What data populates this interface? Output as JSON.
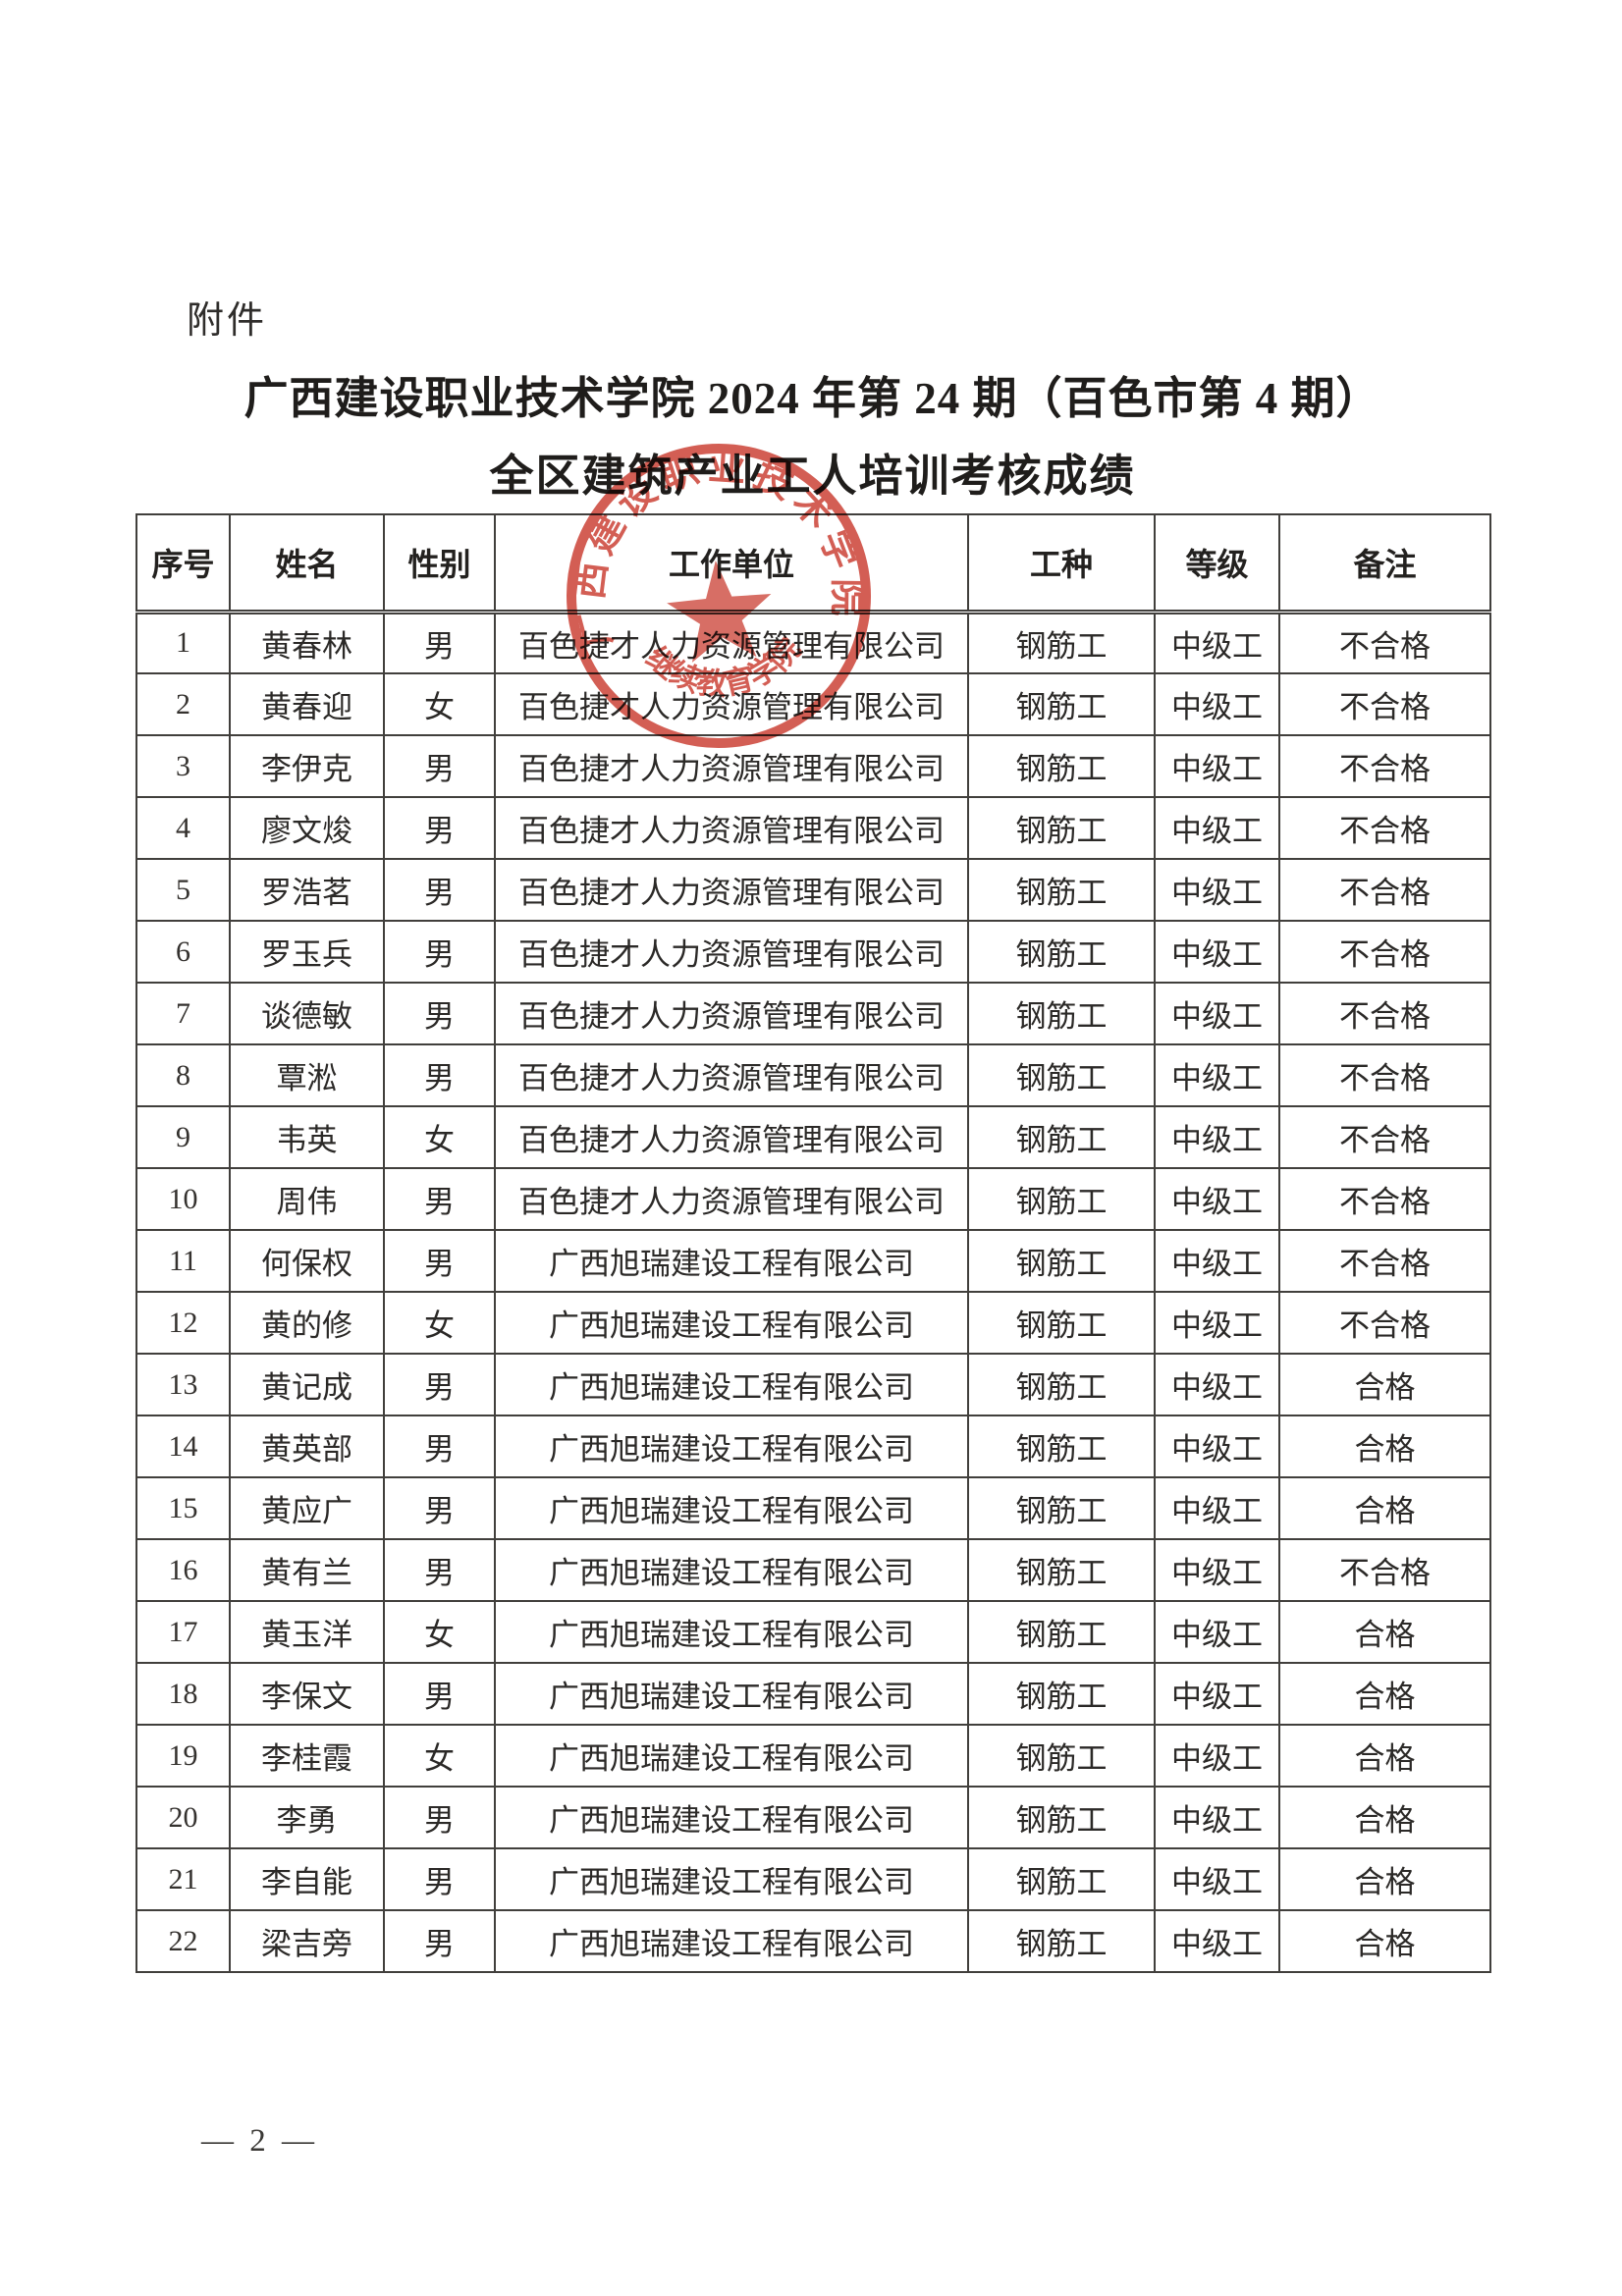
{
  "page": {
    "attachment_label": "附件",
    "title_line1": "广西建设职业技术学院 2024 年第 24 期（百色市第 4 期）",
    "title_line2": "全区建筑产业工人培训考核成绩",
    "page_number": "— 2 —"
  },
  "stamp": {
    "ring_text": "广西建设职业技术学院",
    "bottom_text": "继续教育学院",
    "color": "#c93a2e"
  },
  "table": {
    "headers": [
      "序号",
      "姓名",
      "性别",
      "工作单位",
      "工种",
      "等级",
      "备注"
    ],
    "rows": [
      [
        "1",
        "黄春林",
        "男",
        "百色捷才人力资源管理有限公司",
        "钢筋工",
        "中级工",
        "不合格"
      ],
      [
        "2",
        "黄春迎",
        "女",
        "百色捷才人力资源管理有限公司",
        "钢筋工",
        "中级工",
        "不合格"
      ],
      [
        "3",
        "李伊克",
        "男",
        "百色捷才人力资源管理有限公司",
        "钢筋工",
        "中级工",
        "不合格"
      ],
      [
        "4",
        "廖文焌",
        "男",
        "百色捷才人力资源管理有限公司",
        "钢筋工",
        "中级工",
        "不合格"
      ],
      [
        "5",
        "罗浩茗",
        "男",
        "百色捷才人力资源管理有限公司",
        "钢筋工",
        "中级工",
        "不合格"
      ],
      [
        "6",
        "罗玉兵",
        "男",
        "百色捷才人力资源管理有限公司",
        "钢筋工",
        "中级工",
        "不合格"
      ],
      [
        "7",
        "谈德敏",
        "男",
        "百色捷才人力资源管理有限公司",
        "钢筋工",
        "中级工",
        "不合格"
      ],
      [
        "8",
        "覃淞",
        "男",
        "百色捷才人力资源管理有限公司",
        "钢筋工",
        "中级工",
        "不合格"
      ],
      [
        "9",
        "韦英",
        "女",
        "百色捷才人力资源管理有限公司",
        "钢筋工",
        "中级工",
        "不合格"
      ],
      [
        "10",
        "周伟",
        "男",
        "百色捷才人力资源管理有限公司",
        "钢筋工",
        "中级工",
        "不合格"
      ],
      [
        "11",
        "何保权",
        "男",
        "广西旭瑞建设工程有限公司",
        "钢筋工",
        "中级工",
        "不合格"
      ],
      [
        "12",
        "黄的修",
        "女",
        "广西旭瑞建设工程有限公司",
        "钢筋工",
        "中级工",
        "不合格"
      ],
      [
        "13",
        "黄记成",
        "男",
        "广西旭瑞建设工程有限公司",
        "钢筋工",
        "中级工",
        "合格"
      ],
      [
        "14",
        "黄英部",
        "男",
        "广西旭瑞建设工程有限公司",
        "钢筋工",
        "中级工",
        "合格"
      ],
      [
        "15",
        "黄应广",
        "男",
        "广西旭瑞建设工程有限公司",
        "钢筋工",
        "中级工",
        "合格"
      ],
      [
        "16",
        "黄有兰",
        "男",
        "广西旭瑞建设工程有限公司",
        "钢筋工",
        "中级工",
        "不合格"
      ],
      [
        "17",
        "黄玉洋",
        "女",
        "广西旭瑞建设工程有限公司",
        "钢筋工",
        "中级工",
        "合格"
      ],
      [
        "18",
        "李保文",
        "男",
        "广西旭瑞建设工程有限公司",
        "钢筋工",
        "中级工",
        "合格"
      ],
      [
        "19",
        "李桂霞",
        "女",
        "广西旭瑞建设工程有限公司",
        "钢筋工",
        "中级工",
        "合格"
      ],
      [
        "20",
        "李勇",
        "男",
        "广西旭瑞建设工程有限公司",
        "钢筋工",
        "中级工",
        "合格"
      ],
      [
        "21",
        "李自能",
        "男",
        "广西旭瑞建设工程有限公司",
        "钢筋工",
        "中级工",
        "合格"
      ],
      [
        "22",
        "梁吉旁",
        "男",
        "广西旭瑞建设工程有限公司",
        "钢筋工",
        "中级工",
        "合格"
      ]
    ]
  }
}
